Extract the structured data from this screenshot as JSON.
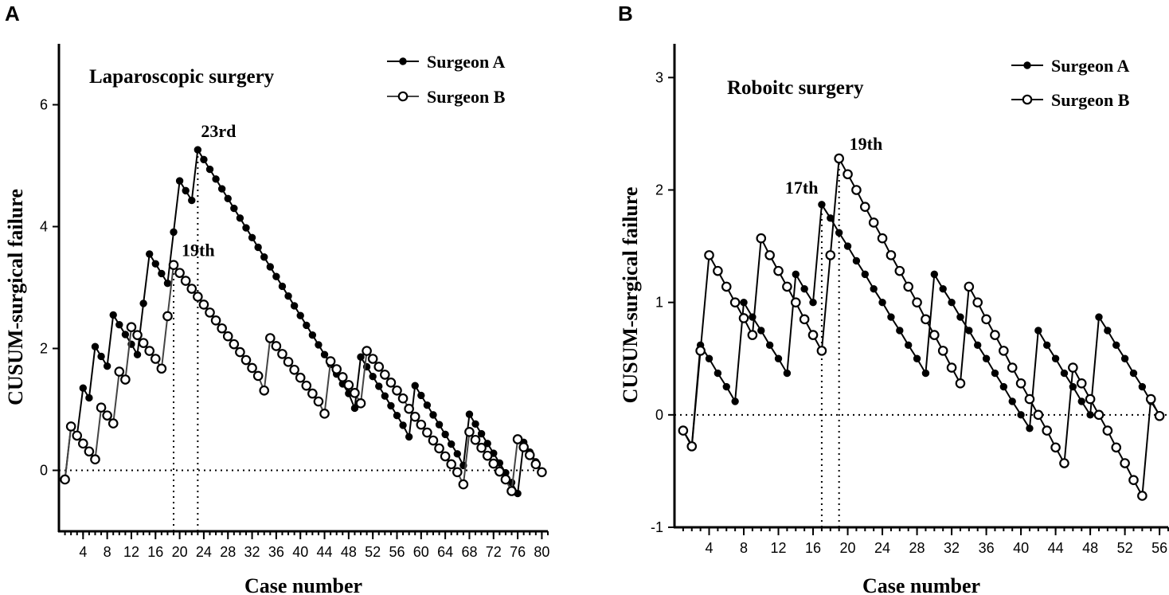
{
  "chart_data": [
    {
      "panel": "A",
      "type": "line",
      "title": "Laparoscopic surgery",
      "xlabel": "Case number",
      "ylabel": "CUSUM-surgical failure",
      "xlim": [
        0,
        81
      ],
      "ylim": [
        -1,
        7
      ],
      "xticks": [
        4,
        8,
        12,
        16,
        20,
        24,
        28,
        32,
        36,
        40,
        44,
        48,
        52,
        56,
        60,
        64,
        68,
        72,
        76,
        80
      ],
      "yticks": [
        0,
        2,
        4,
        6
      ],
      "reference_line_y": 0,
      "vlines": [
        19,
        23
      ],
      "annotations": [
        {
          "text": "23rd",
          "x": 23,
          "y": 5.25
        },
        {
          "text": "19th",
          "x": 19,
          "y": 3.37
        }
      ],
      "series": [
        {
          "name": "Surgeon A",
          "marker": "filled",
          "color": "#000000",
          "x": [
            1,
            2,
            3,
            4,
            5,
            6,
            7,
            8,
            9,
            10,
            11,
            12,
            13,
            14,
            15,
            16,
            17,
            18,
            19,
            20,
            21,
            22,
            23,
            24,
            25,
            26,
            27,
            28,
            29,
            30,
            31,
            32,
            33,
            34,
            35,
            36,
            37,
            38,
            39,
            40,
            41,
            42,
            43,
            44,
            45,
            46,
            47,
            48,
            49,
            50,
            51,
            52,
            53,
            54,
            55,
            56,
            57,
            58,
            59,
            60,
            61,
            62,
            63,
            64,
            65,
            66,
            67,
            68,
            69,
            70,
            71,
            72,
            73,
            74,
            75,
            76,
            77,
            78,
            79,
            80
          ],
          "y": [
            -0.15,
            0.72,
            0.57,
            1.35,
            1.19,
            2.03,
            1.87,
            1.71,
            2.55,
            2.39,
            2.23,
            2.07,
            1.9,
            2.74,
            3.55,
            3.39,
            3.23,
            3.07,
            3.91,
            4.75,
            4.59,
            4.43,
            5.26,
            5.1,
            4.94,
            4.78,
            4.62,
            4.46,
            4.3,
            4.14,
            3.98,
            3.82,
            3.66,
            3.5,
            3.34,
            3.18,
            3.02,
            2.86,
            2.7,
            2.54,
            2.38,
            2.22,
            2.06,
            1.9,
            1.74,
            1.58,
            1.42,
            1.26,
            1.02,
            1.86,
            1.7,
            1.54,
            1.38,
            1.22,
            1.06,
            0.9,
            0.74,
            0.55,
            1.39,
            1.23,
            1.07,
            0.91,
            0.75,
            0.59,
            0.43,
            0.27,
            0.08,
            0.92,
            0.76,
            0.6,
            0.44,
            0.28,
            0.12,
            -0.04,
            -0.2,
            -0.38,
            0.46,
            0.3,
            0.14,
            -0.02
          ]
        },
        {
          "name": "Surgeon B",
          "marker": "open",
          "color": "#444444",
          "x": [
            1,
            2,
            3,
            4,
            5,
            6,
            7,
            8,
            9,
            10,
            11,
            12,
            13,
            14,
            15,
            16,
            17,
            18,
            19,
            20,
            21,
            22,
            23,
            24,
            25,
            26,
            27,
            28,
            29,
            30,
            31,
            32,
            33,
            34,
            35,
            36,
            37,
            38,
            39,
            40,
            41,
            42,
            43,
            44,
            45,
            46,
            47,
            48,
            49,
            50,
            51,
            52,
            53,
            54,
            55,
            56,
            57,
            58,
            59,
            60,
            61,
            62,
            63,
            64,
            65,
            66,
            67,
            68,
            69,
            70,
            71,
            72,
            73,
            74,
            75,
            76,
            77,
            78,
            79,
            80
          ],
          "y": [
            -0.15,
            0.72,
            0.57,
            0.44,
            0.31,
            0.18,
            1.03,
            0.9,
            0.77,
            1.62,
            1.49,
            2.35,
            2.22,
            2.09,
            1.96,
            1.83,
            1.67,
            2.53,
            3.37,
            3.24,
            3.11,
            2.98,
            2.85,
            2.72,
            2.59,
            2.46,
            2.33,
            2.2,
            2.07,
            1.94,
            1.81,
            1.68,
            1.55,
            1.31,
            2.17,
            2.04,
            1.91,
            1.78,
            1.65,
            1.52,
            1.39,
            1.26,
            1.13,
            0.93,
            1.79,
            1.66,
            1.53,
            1.4,
            1.27,
            1.1,
            1.96,
            1.83,
            1.7,
            1.57,
            1.44,
            1.31,
            1.18,
            1.01,
            0.88,
            0.75,
            0.62,
            0.49,
            0.36,
            0.23,
            0.1,
            -0.03,
            -0.23,
            0.63,
            0.5,
            0.37,
            0.24,
            0.11,
            -0.02,
            -0.15,
            -0.34,
            0.51,
            0.38,
            0.25,
            0.1,
            -0.03
          ]
        }
      ]
    },
    {
      "panel": "B",
      "type": "line",
      "title": "Roboitc surgery",
      "xlabel": "Case number",
      "ylabel": "CUSUM-surgical failure",
      "xlim": [
        0,
        57
      ],
      "ylim": [
        -1,
        3.3
      ],
      "xticks": [
        4,
        8,
        12,
        16,
        20,
        24,
        28,
        32,
        36,
        40,
        44,
        48,
        52,
        56
      ],
      "yticks": [
        -1,
        0,
        1,
        2,
        3
      ],
      "reference_line_y": 0,
      "vlines": [
        17,
        19
      ],
      "annotations": [
        {
          "text": "17th",
          "x": 17,
          "y": 1.87
        },
        {
          "text": "19th",
          "x": 19,
          "y": 2.28
        }
      ],
      "series": [
        {
          "name": "Surgeon A",
          "marker": "filled",
          "color": "#000000",
          "x": [
            1,
            2,
            3,
            4,
            5,
            6,
            7,
            8,
            9,
            10,
            11,
            12,
            13,
            14,
            15,
            16,
            17,
            18,
            19,
            20,
            21,
            22,
            23,
            24,
            25,
            26,
            27,
            28,
            29,
            30,
            31,
            32,
            33,
            34,
            35,
            36,
            37,
            38,
            39,
            40,
            41,
            42,
            43,
            44,
            45,
            46,
            47,
            48,
            49,
            50,
            51,
            52,
            53,
            54,
            55,
            56
          ],
          "y": [
            -0.14,
            -0.27,
            0.62,
            0.5,
            0.37,
            0.25,
            0.12,
            1.0,
            0.87,
            0.75,
            0.62,
            0.5,
            0.37,
            1.25,
            1.12,
            1.0,
            1.87,
            1.75,
            1.62,
            1.5,
            1.37,
            1.25,
            1.12,
            1.0,
            0.87,
            0.75,
            0.62,
            0.5,
            0.37,
            1.25,
            1.12,
            1.0,
            0.87,
            0.75,
            0.62,
            0.5,
            0.37,
            0.25,
            0.12,
            0.0,
            -0.12,
            0.75,
            0.62,
            0.5,
            0.37,
            0.25,
            0.12,
            0.0,
            0.87,
            0.75,
            0.62,
            0.5,
            0.37,
            0.25,
            0.12,
            0.0
          ]
        },
        {
          "name": "Surgeon B",
          "marker": "open",
          "color": "#000000",
          "x": [
            1,
            2,
            3,
            4,
            5,
            6,
            7,
            8,
            9,
            10,
            11,
            12,
            13,
            14,
            15,
            16,
            17,
            18,
            19,
            20,
            21,
            22,
            23,
            24,
            25,
            26,
            27,
            28,
            29,
            30,
            31,
            32,
            33,
            34,
            35,
            36,
            37,
            38,
            39,
            40,
            41,
            42,
            43,
            44,
            45,
            46,
            47,
            48,
            49,
            50,
            51,
            52,
            53,
            54,
            55,
            56
          ],
          "y": [
            -0.14,
            -0.28,
            0.57,
            1.42,
            1.28,
            1.14,
            1.0,
            0.86,
            0.71,
            1.57,
            1.42,
            1.28,
            1.14,
            1.0,
            0.85,
            0.71,
            0.57,
            1.42,
            2.28,
            2.14,
            2.0,
            1.85,
            1.71,
            1.57,
            1.42,
            1.28,
            1.14,
            1.0,
            0.85,
            0.71,
            0.57,
            0.42,
            0.28,
            1.14,
            1.0,
            0.85,
            0.71,
            0.57,
            0.42,
            0.28,
            0.14,
            0.0,
            -0.14,
            -0.29,
            -0.43,
            0.42,
            0.28,
            0.14,
            0.0,
            -0.14,
            -0.29,
            -0.43,
            -0.58,
            -0.72,
            0.14,
            -0.01
          ]
        }
      ]
    }
  ]
}
